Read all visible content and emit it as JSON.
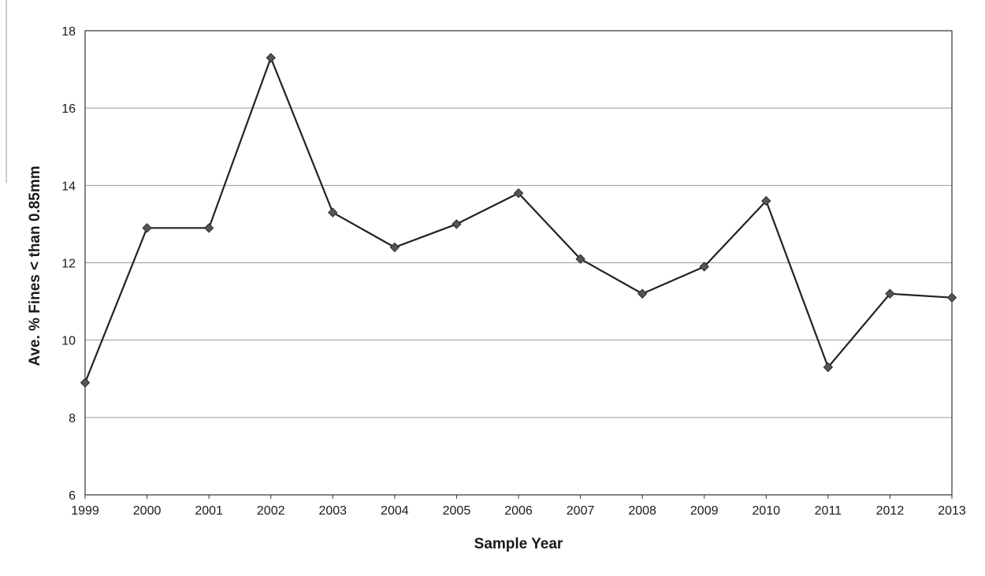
{
  "chart_data": {
    "type": "line",
    "title": "",
    "xlabel": "Sample Year",
    "ylabel": "Ave. % Fines < than 0.85mm",
    "categories": [
      "1999",
      "2000",
      "2001",
      "2002",
      "2003",
      "2004",
      "2005",
      "2006",
      "2007",
      "2008",
      "2009",
      "2010",
      "2011",
      "2012",
      "2013"
    ],
    "yticks": [
      "6",
      "8",
      "10",
      "12",
      "14",
      "16",
      "18"
    ],
    "ylim": [
      6,
      18
    ],
    "grid": true,
    "series": [
      {
        "values": [
          8.9,
          12.9,
          12.9,
          17.3,
          13.3,
          12.4,
          13.0,
          13.8,
          12.1,
          11.2,
          11.9,
          13.6,
          9.3,
          11.2,
          11.1
        ],
        "color": "#222222",
        "marker": "diamond",
        "marker_color": "#555555"
      }
    ]
  }
}
